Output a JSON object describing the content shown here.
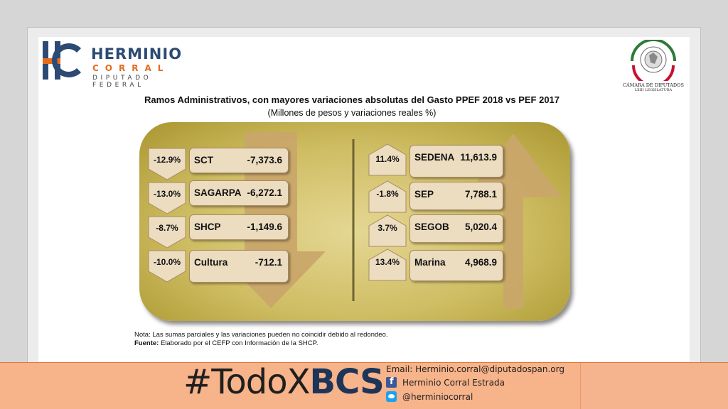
{
  "logo": {
    "name1": "HERMINIO",
    "name2": "CORRAL",
    "name3": "DIPUTADO FEDERAL",
    "colors": {
      "navy": "#2c4a73",
      "orange": "#e36c1e"
    }
  },
  "seal": {
    "line1": "CÁMARA DE DIPUTADOS",
    "line2": "LXIII LEGISLATURA"
  },
  "title": "Ramos Administrativos, con mayores variaciones absolutas del Gasto PPEF 2018 vs PEF 2017",
  "subtitle": "(Millones de pesos y variaciones reales %)",
  "decreases": [
    {
      "pct": "-12.9%",
      "name": "SCT",
      "value": "-7,373.6"
    },
    {
      "pct": "-13.0%",
      "name": "SAGARPA",
      "value": "-6,272.1"
    },
    {
      "pct": "-8.7%",
      "name": "SHCP",
      "value": "-1,149.6"
    },
    {
      "pct": "-10.0%",
      "name": "Cultura",
      "value": "-712.1"
    }
  ],
  "increases": [
    {
      "pct": "11.4%",
      "name": "SEDENA",
      "value": "11,613.9"
    },
    {
      "pct": "-1.8%",
      "name": "SEP",
      "value": "7,788.1"
    },
    {
      "pct": "3.7%",
      "name": "SEGOB",
      "value": "5,020.4"
    },
    {
      "pct": "13.4%",
      "name": "Marina",
      "value": "4,968.9"
    }
  ],
  "note": {
    "line1": "Nota: Las sumas parciales y las variaciones pueden no coincidir debido al redondeo.",
    "line2_label": "Fuente:",
    "line2_text": "Elaborado por el CEFP con Información de la SHCP."
  },
  "banner": {
    "hashtag_a": "#TodoX",
    "hashtag_b": "BCS",
    "email": "Email: Herminio.corral@diputadospan.org",
    "facebook": "Herminio Corral Estrada",
    "twitter": "@herminiocorral",
    "bg_color": "#f7b38a"
  }
}
